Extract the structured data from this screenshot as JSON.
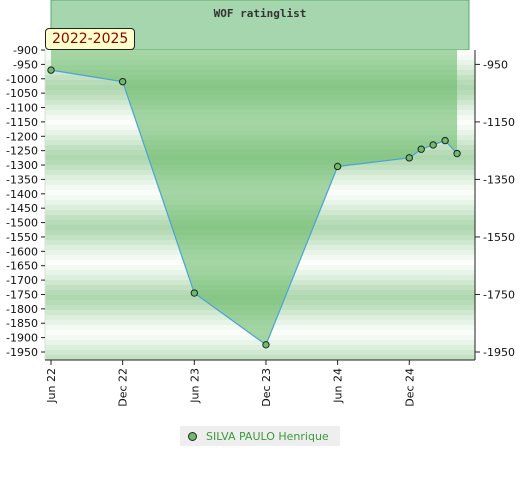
{
  "chart_data": {
    "type": "area",
    "title": "WOF ratinglist",
    "range_label": "2022-2025",
    "x_ticks": [
      "Jun 22",
      "Dec 22",
      "Jun 23",
      "Dec 23",
      "Jun 24",
      "Dec 24"
    ],
    "y_left_ticks": [
      -900,
      -950,
      -1000,
      -1050,
      -1100,
      -1150,
      -1200,
      -1250,
      -1300,
      -1350,
      -1400,
      -1450,
      -1500,
      -1550,
      -1600,
      -1650,
      -1700,
      -1750,
      -1800,
      -1850,
      -1900,
      -1950
    ],
    "y_right_ticks": [
      -950,
      -1150,
      -1350,
      -1550,
      -1750,
      -1950
    ],
    "ylim": [
      -1950,
      -900
    ],
    "xlim": [
      "2022-06",
      "2025-05"
    ],
    "series": [
      {
        "name": "SILVA PAULO Henrique",
        "color": "#6dbb6d",
        "line_color": "#4aa3d8",
        "x": [
          "2022-06",
          "2022-12",
          "2023-06",
          "2023-12",
          "2024-06",
          "2024-12",
          "2025-01",
          "2025-02",
          "2025-03",
          "2025-04"
        ],
        "y": [
          -970,
          -1010,
          -1745,
          -1925,
          -1305,
          -1275,
          -1245,
          -1230,
          -1215,
          -1260
        ]
      }
    ],
    "legend_position": "bottom-center",
    "grid": true
  }
}
